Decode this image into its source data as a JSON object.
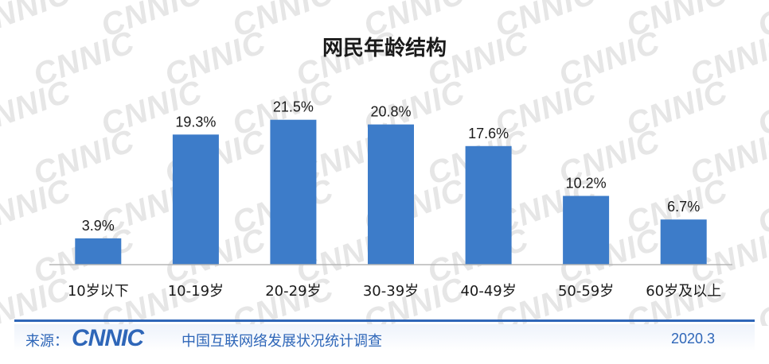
{
  "chart_data": {
    "type": "bar",
    "title": "网民年龄结构",
    "categories": [
      "10岁以下",
      "10-19岁",
      "20-29岁",
      "30-39岁",
      "40-49岁",
      "50-59岁",
      "60岁及以上"
    ],
    "values": [
      3.9,
      19.3,
      21.5,
      20.8,
      17.6,
      10.2,
      6.7
    ],
    "value_labels": [
      "3.9%",
      "19.3%",
      "21.5%",
      "20.8%",
      "17.6%",
      "10.2%",
      "6.7%"
    ],
    "unit": "%",
    "ylim": [
      0,
      25
    ],
    "xlabel": "",
    "ylabel": "",
    "grid": false,
    "legend": "none",
    "bar_color": "#3d7cc9"
  },
  "watermark": {
    "text": "CNNIC"
  },
  "footer": {
    "source_label": "来源：",
    "brand_logo": "CNNIC",
    "survey_name": "中国互联网络发展状况统计调查",
    "date": "2020.3"
  },
  "colors": {
    "accent": "#2e66b8",
    "bar": "#3d7cc9"
  }
}
